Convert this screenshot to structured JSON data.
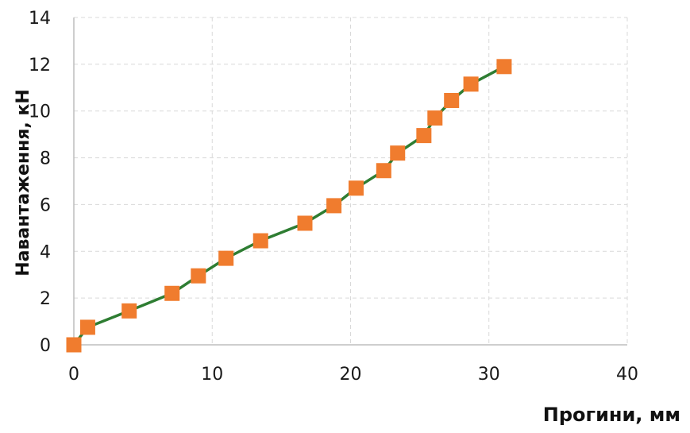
{
  "chart_data": {
    "type": "line",
    "title": "",
    "xlabel": "Прогини, мм",
    "ylabel": "Навантаження, кН",
    "xlim": [
      0,
      40
    ],
    "ylim": [
      0,
      14
    ],
    "xticks": [
      "0",
      "10",
      "20",
      "30",
      "40"
    ],
    "yticks": [
      "0",
      "2",
      "4",
      "6",
      "8",
      "10",
      "12",
      "14"
    ],
    "grid": true,
    "legend": "none",
    "series": [
      {
        "marker": "square",
        "line_color": "#2e7d32",
        "marker_color": "#f07c2e",
        "x": [
          0,
          1,
          4,
          7.1,
          9,
          11,
          13.5,
          16.7,
          18.8,
          20.4,
          22.4,
          23.4,
          25.3,
          26.1,
          27.3,
          28.7,
          31.1
        ],
        "y": [
          0,
          0.75,
          1.45,
          2.2,
          2.95,
          3.7,
          4.45,
          5.2,
          5.95,
          6.7,
          7.45,
          8.2,
          8.95,
          9.7,
          10.45,
          11.15,
          11.9
        ]
      }
    ]
  }
}
